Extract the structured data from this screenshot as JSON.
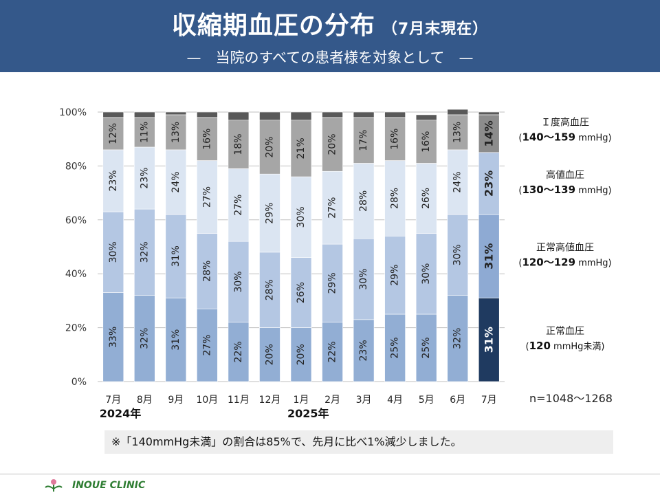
{
  "header": {
    "title": "収縮期血圧の分布",
    "title_note": "（7月末現在）",
    "subtitle": "—　当院のすべての患者様を対象として　—"
  },
  "sample_size": "n=1048～1268",
  "note": "※「140mmHg未満」の割合は85%で、先月に比べ1%減少しました。",
  "footer": {
    "clinic_name": "INOUE CLINIC"
  },
  "colors": {
    "normal": "#92aed4",
    "high_normal": "#b4c7e3",
    "elevated": "#dbe5f2",
    "grade1": "#a6a6a6",
    "top": "#595959",
    "latest_normal": "#1f3a60",
    "latest_high_normal": "#8eaad3",
    "latest_elevated": "#b4c7e3",
    "latest_grade1": "#8c8c8c",
    "text_dark": "#222222",
    "text_light": "#ffffff"
  },
  "chart_data": {
    "type": "bar",
    "stacked": true,
    "categories": [
      "7月",
      "8月",
      "9月",
      "10月",
      "11月",
      "12月",
      "1月",
      "2月",
      "3月",
      "4月",
      "5月",
      "6月",
      "7月"
    ],
    "year_labels": [
      {
        "index": 0,
        "label": "2024年"
      },
      {
        "index": 6,
        "label": "2025年"
      }
    ],
    "ylim": [
      0,
      100
    ],
    "yticks": [
      "0%",
      "20%",
      "40%",
      "60%",
      "80%",
      "100%"
    ],
    "grid": true,
    "highlight_index": 12,
    "series": [
      {
        "name": "正常血圧",
        "range": "120",
        "unit": "mmHg未満",
        "color_key": "normal",
        "values": [
          33,
          32,
          31,
          27,
          22,
          20,
          20,
          22,
          23,
          25,
          25,
          32,
          31
        ]
      },
      {
        "name": "正常高値血圧",
        "range": "120～129",
        "unit": "mmHg",
        "color_key": "high_normal",
        "values": [
          30,
          32,
          31,
          28,
          30,
          28,
          26,
          29,
          30,
          29,
          30,
          30,
          31
        ]
      },
      {
        "name": "高値血圧",
        "range": "130～139",
        "unit": "mmHg",
        "color_key": "elevated",
        "values": [
          23,
          23,
          24,
          27,
          27,
          29,
          30,
          27,
          28,
          28,
          26,
          24,
          23
        ]
      },
      {
        "name": "Ｉ度高血圧",
        "range": "140～159",
        "unit": "mmHg",
        "color_key": "grade1",
        "values": [
          12,
          11,
          13,
          16,
          18,
          20,
          21,
          20,
          17,
          16,
          16,
          13,
          14
        ]
      },
      {
        "name": "",
        "range": "",
        "unit": "",
        "color_key": "top",
        "values": [
          2,
          2,
          1,
          2,
          3,
          3,
          3,
          2,
          2,
          2,
          2,
          2,
          1
        ]
      }
    ],
    "data_labels": [
      [
        "33%",
        "32%",
        "31%",
        "27%",
        "22%",
        "20%",
        "20%",
        "22%",
        "23%",
        "25%",
        "25%",
        "32%",
        "31%"
      ],
      [
        "30%",
        "32%",
        "31%",
        "28%",
        "30%",
        "28%",
        "26%",
        "29%",
        "30%",
        "29%",
        "30%",
        "30%",
        "31%"
      ],
      [
        "23%",
        "23%",
        "24%",
        "27%",
        "27%",
        "29%",
        "30%",
        "27%",
        "28%",
        "28%",
        "26%",
        "24%",
        "23%"
      ],
      [
        "12%",
        "11%",
        "13%",
        "16%",
        "18%",
        "20%",
        "21%",
        "20%",
        "17%",
        "16%",
        "16%",
        "13%",
        "14%"
      ]
    ]
  }
}
